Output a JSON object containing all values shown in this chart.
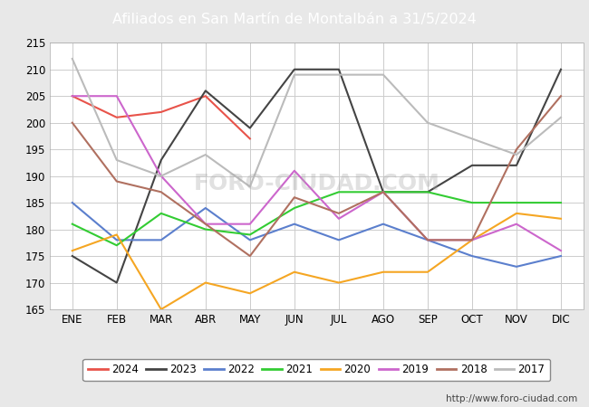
{
  "title": "Afiliados en San Martín de Montalbán a 31/5/2024",
  "header_bg": "#5b8dd9",
  "months": [
    "ENE",
    "FEB",
    "MAR",
    "ABR",
    "MAY",
    "JUN",
    "JUL",
    "AGO",
    "SEP",
    "OCT",
    "NOV",
    "DIC"
  ],
  "ylim": [
    165,
    215
  ],
  "yticks": [
    165,
    170,
    175,
    180,
    185,
    190,
    195,
    200,
    205,
    210,
    215
  ],
  "series": {
    "2024": {
      "color": "#e8534a",
      "values": [
        205,
        201,
        202,
        205,
        197,
        null,
        null,
        null,
        null,
        null,
        null,
        null
      ]
    },
    "2023": {
      "color": "#444444",
      "values": [
        175,
        170,
        193,
        206,
        199,
        210,
        210,
        187,
        187,
        192,
        192,
        210
      ]
    },
    "2022": {
      "color": "#5b7fcd",
      "values": [
        185,
        178,
        178,
        184,
        178,
        181,
        178,
        181,
        178,
        175,
        173,
        175
      ]
    },
    "2021": {
      "color": "#33cc33",
      "values": [
        181,
        177,
        183,
        180,
        179,
        184,
        187,
        187,
        187,
        185,
        185,
        185
      ]
    },
    "2020": {
      "color": "#f5a623",
      "values": [
        176,
        179,
        165,
        170,
        168,
        172,
        170,
        172,
        172,
        178,
        183,
        182
      ]
    },
    "2019": {
      "color": "#cc66cc",
      "values": [
        205,
        205,
        190,
        181,
        181,
        191,
        182,
        187,
        178,
        178,
        181,
        176
      ]
    },
    "2018": {
      "color": "#b07060",
      "values": [
        200,
        189,
        187,
        181,
        175,
        186,
        183,
        187,
        178,
        178,
        195,
        205
      ]
    },
    "2017": {
      "color": "#bbbbbb",
      "values": [
        212,
        193,
        190,
        194,
        188,
        209,
        209,
        209,
        200,
        197,
        194,
        201
      ]
    }
  },
  "watermark": "FORO-CIUDAD.COM",
  "url": "http://www.foro-ciudad.com",
  "fig_bg": "#e8e8e8",
  "plot_bg": "#ffffff",
  "grid_color": "#cccccc",
  "legend_order": [
    "2024",
    "2023",
    "2022",
    "2021",
    "2020",
    "2019",
    "2018",
    "2017"
  ]
}
